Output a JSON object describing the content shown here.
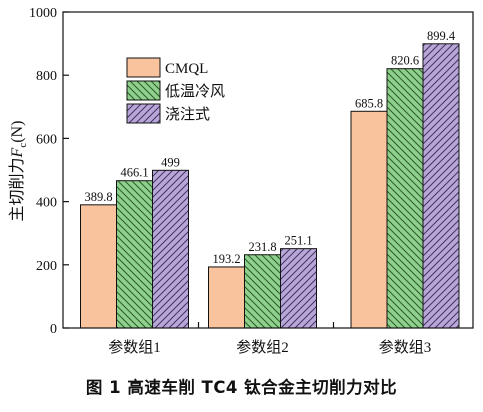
{
  "caption": "图 1   高速车削 TC4 钛合金主切削力对比",
  "chart_data": {
    "type": "bar",
    "ylabel": "主切削力F_c(N)",
    "ylabel_main": "主切削力",
    "ylabel_var": "F",
    "ylabel_sub": "c",
    "ylabel_unit": "(N)",
    "ylim": [
      0,
      1000
    ],
    "yticks": [
      0,
      200,
      400,
      600,
      800,
      1000
    ],
    "categories": [
      "参数组1",
      "参数组2",
      "参数组3"
    ],
    "series": [
      {
        "name": "CMQL",
        "values": [
          389.8,
          193.2,
          685.8
        ],
        "labels": [
          "389.8",
          "193.2",
          "685.8"
        ],
        "color": "#f9c49d",
        "pattern": "none"
      },
      {
        "name": "低温冷风",
        "values": [
          466.1,
          231.8,
          820.6
        ],
        "labels": [
          "466.1",
          "231.8",
          "820.6"
        ],
        "color": "#8fd18c",
        "pattern": "hatch-back"
      },
      {
        "name": "浇注式",
        "values": [
          499,
          251.1,
          899.4
        ],
        "labels": [
          "499",
          "251.1",
          "899.4"
        ],
        "color": "#b9a6d8",
        "pattern": "hatch-forward"
      }
    ],
    "legend_position": "upper-left",
    "grid": false
  }
}
